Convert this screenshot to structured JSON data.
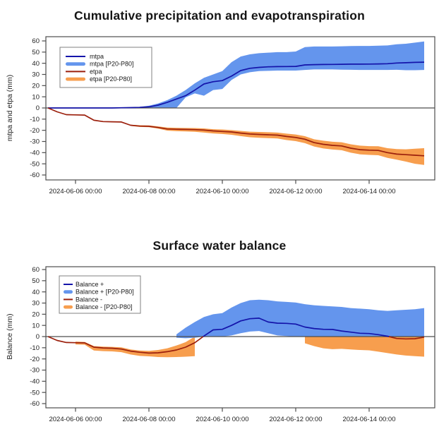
{
  "page": {
    "background": "#ffffff"
  },
  "colors": {
    "line_blue": "#1414aa",
    "band_blue": "#6495ED",
    "line_red": "#9b1f0c",
    "band_orange": "#F79E4E",
    "axis": "#4d4d4d",
    "tick_text": "#222222",
    "legend_border": "#808080"
  },
  "chart_data": [
    {
      "type": "line",
      "title": "Cumulative precipitation and evapotranspiration",
      "xlabel": "",
      "ylabel": "mtpa and etpa (mm)",
      "ylim": [
        -60,
        60
      ],
      "y_tick_step": 10,
      "grid": false,
      "legend_position": "top-left",
      "x_start": "2024-06-05 06:00",
      "x_step_hours": 6,
      "n_points": 42,
      "x_tick_index": [
        3,
        11,
        19,
        27,
        35
      ],
      "x_tick_labels": [
        "2024-06-06 00:00",
        "2024-06-08 00:00",
        "2024-06-10 00:00",
        "2024-06-12 00:00",
        "2024-06-14 00:00"
      ],
      "series": [
        {
          "name": "mtpa band",
          "kind": "band",
          "color": "#6495ED",
          "hi": [
            0,
            0,
            0,
            0,
            0,
            0,
            0,
            0,
            0.3,
            0.5,
            1,
            2,
            4,
            7,
            11,
            16,
            22,
            27,
            30,
            33,
            41,
            46,
            48,
            49,
            49.5,
            50,
            50,
            50.5,
            54.5,
            55,
            55,
            55,
            55.2,
            55.4,
            55.5,
            55.5,
            55.7,
            56,
            57,
            57.5,
            58.5,
            59.5
          ],
          "lo": [
            0,
            0,
            0,
            0,
            0,
            0,
            0,
            0,
            0,
            0,
            0,
            0,
            0,
            0,
            0,
            9.5,
            13,
            11,
            16,
            17,
            25,
            30,
            32,
            33,
            33.2,
            33.5,
            33.5,
            33.5,
            34,
            34.5,
            34.5,
            34.5,
            34.3,
            34.2,
            34,
            34,
            34,
            34,
            34.2,
            33.8,
            33.8,
            34
          ]
        },
        {
          "name": "etpa band",
          "kind": "band",
          "color": "#F79E4E",
          "hi": [
            null,
            null,
            null,
            null,
            null,
            null,
            null,
            null,
            null,
            -15,
            -15.5,
            -15.6,
            -16.5,
            -17.5,
            -17.8,
            -17.9,
            -18,
            -18.3,
            -19,
            -19.3,
            -19.8,
            -20.5,
            -21.2,
            -21.5,
            -21.7,
            -22,
            -23,
            -23.8,
            -25.3,
            -28,
            -29.3,
            -30.2,
            -30.7,
            -32.5,
            -33.7,
            -34.2,
            -34.3,
            -36,
            -36.8,
            -37,
            -36.5,
            -36
          ],
          "lo": [
            null,
            null,
            null,
            null,
            null,
            null,
            null,
            null,
            null,
            -16,
            -17,
            -17.2,
            -18.5,
            -20.3,
            -20.8,
            -21,
            -21.3,
            -22,
            -22.8,
            -23.3,
            -24,
            -25.2,
            -26.2,
            -26.7,
            -27,
            -27.3,
            -28.7,
            -29.7,
            -31.5,
            -34.5,
            -36.2,
            -37.2,
            -37.8,
            -40,
            -41.5,
            -42,
            -42.3,
            -44.7,
            -46.3,
            -48,
            -50,
            -51
          ]
        },
        {
          "name": "mtpa",
          "kind": "line",
          "color": "#1414aa",
          "values": [
            0,
            0,
            0,
            0,
            0,
            0,
            0,
            0,
            0.2,
            0.3,
            0.5,
            1,
            2.5,
            5,
            8,
            11,
            16,
            21.5,
            23.5,
            24.5,
            28.5,
            33.5,
            35.5,
            36.3,
            36.8,
            37,
            37.1,
            37.2,
            38.5,
            38.8,
            38.9,
            39,
            39.1,
            39.2,
            39.2,
            39.3,
            39.4,
            39.6,
            40.2,
            40.5,
            40.8,
            41
          ]
        },
        {
          "name": "etpa",
          "kind": "line",
          "color": "#9b1f0c",
          "values": [
            0,
            -3.5,
            -6,
            -6.2,
            -6.4,
            -11,
            -12.2,
            -12.4,
            -12.6,
            -15.5,
            -16.2,
            -16.4,
            -17.5,
            -18.8,
            -19.1,
            -19.2,
            -19.4,
            -19.8,
            -20.5,
            -21,
            -21.5,
            -22.5,
            -23.3,
            -23.7,
            -24,
            -24.3,
            -25.5,
            -26.4,
            -28,
            -31,
            -32.5,
            -33.5,
            -34,
            -36,
            -37.3,
            -37.8,
            -38,
            -40,
            -41.3,
            -41.8,
            -42.3,
            -42.8
          ]
        }
      ],
      "legend": [
        {
          "label": "mtpa",
          "swatch": "line",
          "color": "#1414aa"
        },
        {
          "label": "mtpa [P20-P80]",
          "swatch": "band",
          "color": "#6495ED"
        },
        {
          "label": "etpa",
          "swatch": "line",
          "color": "#9b1f0c"
        },
        {
          "label": "etpa [P20-P80]",
          "swatch": "band",
          "color": "#F79E4E"
        }
      ]
    },
    {
      "type": "line",
      "title": "Surface water balance",
      "xlabel": "",
      "ylabel": "Balance (mm)",
      "ylim": [
        -60,
        60
      ],
      "y_tick_step": 10,
      "grid": false,
      "legend_position": "top-left",
      "x_start": "2024-06-05 06:00",
      "x_step_hours": 6,
      "n_points": 42,
      "x_tick_index": [
        3,
        11,
        19,
        27,
        35
      ],
      "x_tick_labels": [
        "2024-06-06 00:00",
        "2024-06-08 00:00",
        "2024-06-10 00:00",
        "2024-06-12 00:00",
        "2024-06-14 00:00"
      ],
      "series": [
        {
          "name": "Balance - band",
          "kind": "band",
          "color": "#F79E4E",
          "hi": [
            null,
            null,
            null,
            -4.5,
            -4.8,
            -8.5,
            -9,
            -9.2,
            -9.6,
            -11.5,
            -12.5,
            -12.8,
            -12,
            -10.5,
            -8,
            -5,
            0,
            null,
            null,
            null,
            null,
            null,
            null,
            null,
            null,
            null,
            null,
            null,
            0,
            0,
            0,
            0,
            0,
            0,
            0,
            0,
            0,
            0,
            0,
            0,
            0,
            0
          ],
          "lo": [
            null,
            null,
            null,
            -7,
            -7.3,
            -12.5,
            -13,
            -13.3,
            -14,
            -16,
            -17.3,
            -17.7,
            -18.3,
            -18.5,
            -18.3,
            -18,
            -17.5,
            null,
            null,
            null,
            null,
            null,
            null,
            null,
            null,
            null,
            null,
            null,
            -6,
            -8.5,
            -10.5,
            -11.3,
            -11,
            -11.5,
            -12,
            -12.3,
            -13.5,
            -14.8,
            -16,
            -17,
            -17.5,
            -18
          ]
        },
        {
          "name": "Balance + band",
          "kind": "band",
          "color": "#6495ED",
          "hi": [
            null,
            null,
            null,
            null,
            null,
            null,
            null,
            null,
            null,
            null,
            null,
            null,
            null,
            null,
            2,
            8,
            13,
            17.5,
            20,
            21,
            26,
            30,
            32.5,
            33,
            32.5,
            31.5,
            31,
            30.5,
            29,
            28,
            27.5,
            27,
            26.5,
            25.5,
            25,
            24.5,
            23.5,
            23,
            23.5,
            24,
            24.5,
            25.5
          ],
          "lo": [
            null,
            null,
            null,
            null,
            null,
            null,
            null,
            null,
            null,
            null,
            null,
            null,
            null,
            null,
            -1,
            -1.5,
            -1,
            0,
            0,
            0,
            1,
            3,
            4.5,
            5,
            3,
            1,
            0.5,
            0,
            0,
            0,
            0,
            0,
            0,
            0,
            0,
            0,
            0,
            0,
            0,
            0,
            0,
            0
          ]
        },
        {
          "name": "Balance",
          "kind": "line",
          "color_pos": "#1414aa",
          "color_neg": "#9b1f0c",
          "values": [
            0,
            -3.5,
            -5.3,
            -5.5,
            -5.6,
            -9.5,
            -10.2,
            -10.4,
            -11.2,
            -13,
            -14,
            -14.8,
            -14.5,
            -13.5,
            -12,
            -9.5,
            -5.5,
            0.5,
            6,
            6.5,
            10,
            14,
            16,
            16.5,
            13,
            12,
            11.8,
            11.2,
            8.5,
            7.2,
            6.5,
            6.4,
            5,
            4,
            3,
            2.7,
            1.7,
            0.3,
            -1.7,
            -2.1,
            -1.9,
            -0.5
          ]
        }
      ],
      "legend": [
        {
          "label": "Balance +",
          "swatch": "line",
          "color": "#1414aa"
        },
        {
          "label": "Balance + [P20-P80]",
          "swatch": "band",
          "color": "#6495ED"
        },
        {
          "label": "Balance -",
          "swatch": "line",
          "color": "#9b1f0c"
        },
        {
          "label": "Balance - [P20-P80]",
          "swatch": "band",
          "color": "#F79E4E"
        }
      ]
    }
  ]
}
